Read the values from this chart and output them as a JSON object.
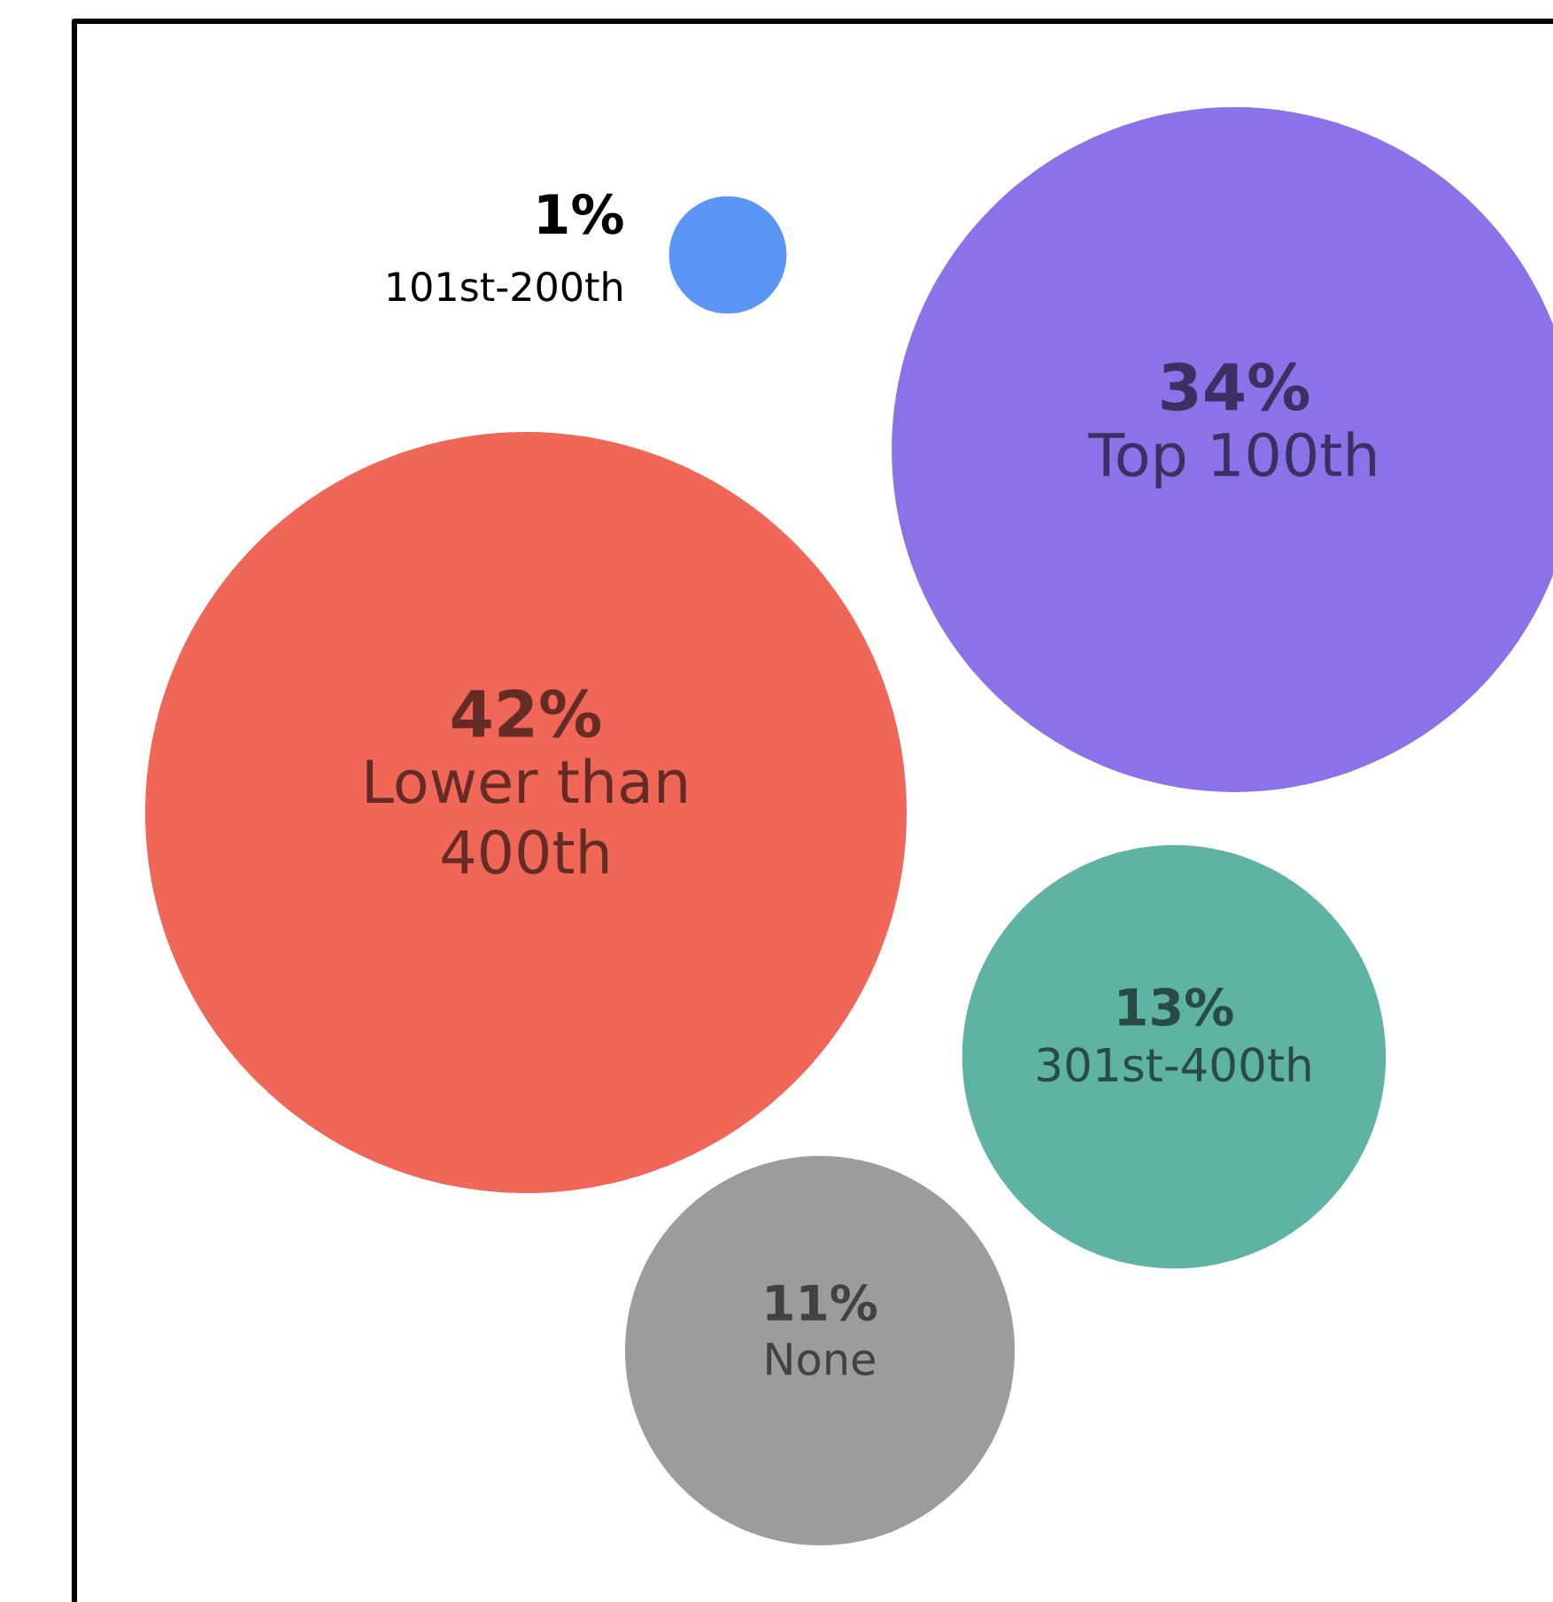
{
  "chart_data": {
    "type": "other",
    "categories": [
      "101st-200th",
      "Top 100th",
      "Lower than 400th",
      "301st-400th",
      "None"
    ],
    "values": [
      1,
      34,
      42,
      13,
      11
    ],
    "colors": [
      "#5b96f7",
      "#8b72e8",
      "#f06657",
      "#5fb3a3",
      "#9c9c9c"
    ],
    "value_labels": [
      "1%",
      "34%",
      "42%",
      "13%",
      "11%"
    ]
  }
}
